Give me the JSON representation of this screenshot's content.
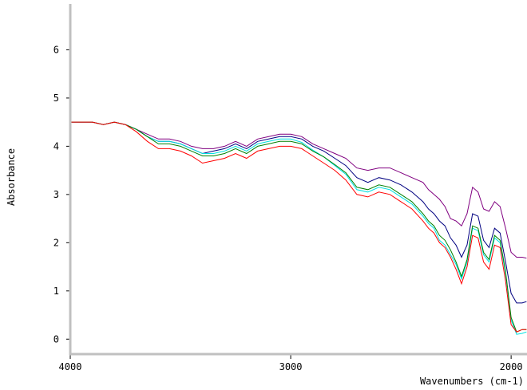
{
  "chart_data": {
    "type": "line",
    "xlabel": "Wavenumbers (cm-1)",
    "ylabel": "Absorbance",
    "x": [
      4000,
      3950,
      3900,
      3850,
      3800,
      3750,
      3700,
      3650,
      3600,
      3550,
      3500,
      3450,
      3400,
      3350,
      3300,
      3250,
      3200,
      3150,
      3100,
      3050,
      3000,
      2950,
      2900,
      2850,
      2800,
      2750,
      2700,
      2650,
      2600,
      2550,
      2500,
      2450,
      2400,
      2375,
      2350,
      2325,
      2300,
      2275,
      2250,
      2225,
      2200,
      2175,
      2150,
      2125,
      2100,
      2075,
      2050,
      2025,
      2000,
      1975,
      1950,
      1930
    ],
    "series": [
      {
        "color": "#800080",
        "values": [
          4.5,
          4.5,
          4.5,
          4.45,
          4.5,
          4.45,
          4.35,
          4.25,
          4.15,
          4.15,
          4.1,
          4.0,
          3.95,
          3.95,
          4.0,
          4.1,
          4.0,
          4.15,
          4.2,
          4.25,
          4.25,
          4.2,
          4.05,
          3.95,
          3.85,
          3.75,
          3.55,
          3.5,
          3.55,
          3.55,
          3.45,
          3.35,
          3.25,
          3.1,
          3.0,
          2.9,
          2.75,
          2.5,
          2.45,
          2.35,
          2.6,
          3.15,
          3.05,
          2.7,
          2.65,
          2.85,
          2.75,
          2.3,
          1.8,
          1.7,
          1.7,
          1.68
        ]
      },
      {
        "color": "#000080",
        "values": [
          4.5,
          4.5,
          4.5,
          4.45,
          4.5,
          4.45,
          4.35,
          4.2,
          4.1,
          4.1,
          4.05,
          3.95,
          3.85,
          3.9,
          3.95,
          4.05,
          3.95,
          4.1,
          4.15,
          4.2,
          4.2,
          4.15,
          4.0,
          3.9,
          3.75,
          3.6,
          3.35,
          3.25,
          3.35,
          3.3,
          3.2,
          3.05,
          2.85,
          2.7,
          2.6,
          2.45,
          2.35,
          2.1,
          1.95,
          1.7,
          1.95,
          2.6,
          2.55,
          2.05,
          1.9,
          2.3,
          2.2,
          1.6,
          0.95,
          0.75,
          0.75,
          0.78
        ]
      },
      {
        "color": "#00e0e0",
        "values": [
          4.5,
          4.5,
          4.5,
          4.45,
          4.5,
          4.45,
          4.35,
          4.2,
          4.1,
          4.1,
          4.05,
          3.95,
          3.85,
          3.85,
          3.9,
          4.0,
          3.9,
          4.05,
          4.1,
          4.15,
          4.15,
          4.08,
          3.92,
          3.78,
          3.6,
          3.42,
          3.1,
          3.05,
          3.15,
          3.1,
          2.95,
          2.8,
          2.55,
          2.4,
          2.3,
          2.05,
          1.95,
          1.75,
          1.55,
          1.25,
          1.6,
          2.3,
          2.25,
          1.75,
          1.6,
          2.1,
          2.0,
          1.35,
          0.4,
          0.1,
          0.12,
          0.15
        ]
      },
      {
        "color": "#008000",
        "values": [
          4.5,
          4.5,
          4.5,
          4.45,
          4.5,
          4.45,
          4.35,
          4.2,
          4.05,
          4.05,
          4.0,
          3.9,
          3.8,
          3.8,
          3.85,
          3.95,
          3.85,
          4.0,
          4.05,
          4.1,
          4.1,
          4.05,
          3.9,
          3.78,
          3.62,
          3.45,
          3.15,
          3.1,
          3.2,
          3.15,
          3.0,
          2.85,
          2.6,
          2.45,
          2.35,
          2.15,
          2.05,
          1.85,
          1.6,
          1.3,
          1.65,
          2.35,
          2.3,
          1.8,
          1.65,
          2.15,
          2.05,
          1.4,
          0.45,
          0.15,
          0.2,
          0.2
        ]
      },
      {
        "color": "#ff0000",
        "values": [
          4.5,
          4.5,
          4.5,
          4.45,
          4.5,
          4.45,
          4.3,
          4.1,
          3.95,
          3.95,
          3.9,
          3.8,
          3.65,
          3.7,
          3.75,
          3.85,
          3.75,
          3.9,
          3.95,
          4.0,
          4.0,
          3.95,
          3.8,
          3.65,
          3.5,
          3.3,
          3.0,
          2.95,
          3.05,
          3.0,
          2.85,
          2.7,
          2.45,
          2.3,
          2.2,
          2.0,
          1.9,
          1.7,
          1.45,
          1.15,
          1.5,
          2.15,
          2.1,
          1.6,
          1.45,
          1.95,
          1.9,
          1.2,
          0.3,
          0.15,
          0.2,
          0.2
        ]
      }
    ],
    "xlim": [
      4000,
      1928
    ],
    "xticks": [
      4000,
      3000,
      2000
    ],
    "ylim": [
      -0.31,
      6.95
    ],
    "yticks": [
      0,
      1,
      2,
      3,
      4,
      5,
      6
    ]
  }
}
